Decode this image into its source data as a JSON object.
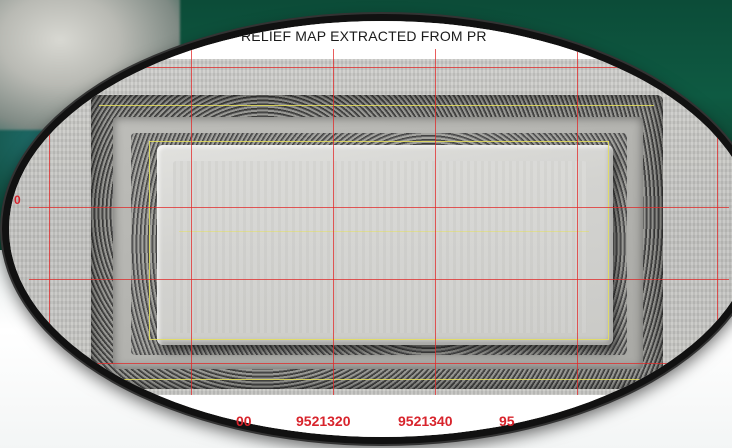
{
  "map": {
    "title": "RELIEF MAP EXTRACTED FROM PR",
    "x_tick_labels": [
      "00",
      "9521320",
      "9521340",
      "95"
    ],
    "y_tick_label": "0"
  },
  "colors": {
    "grid_line": "#e12828",
    "tick_label": "#d8242c",
    "frame": "#111111",
    "contour": "#e6e15a",
    "background_sea": "#0f4a36"
  }
}
